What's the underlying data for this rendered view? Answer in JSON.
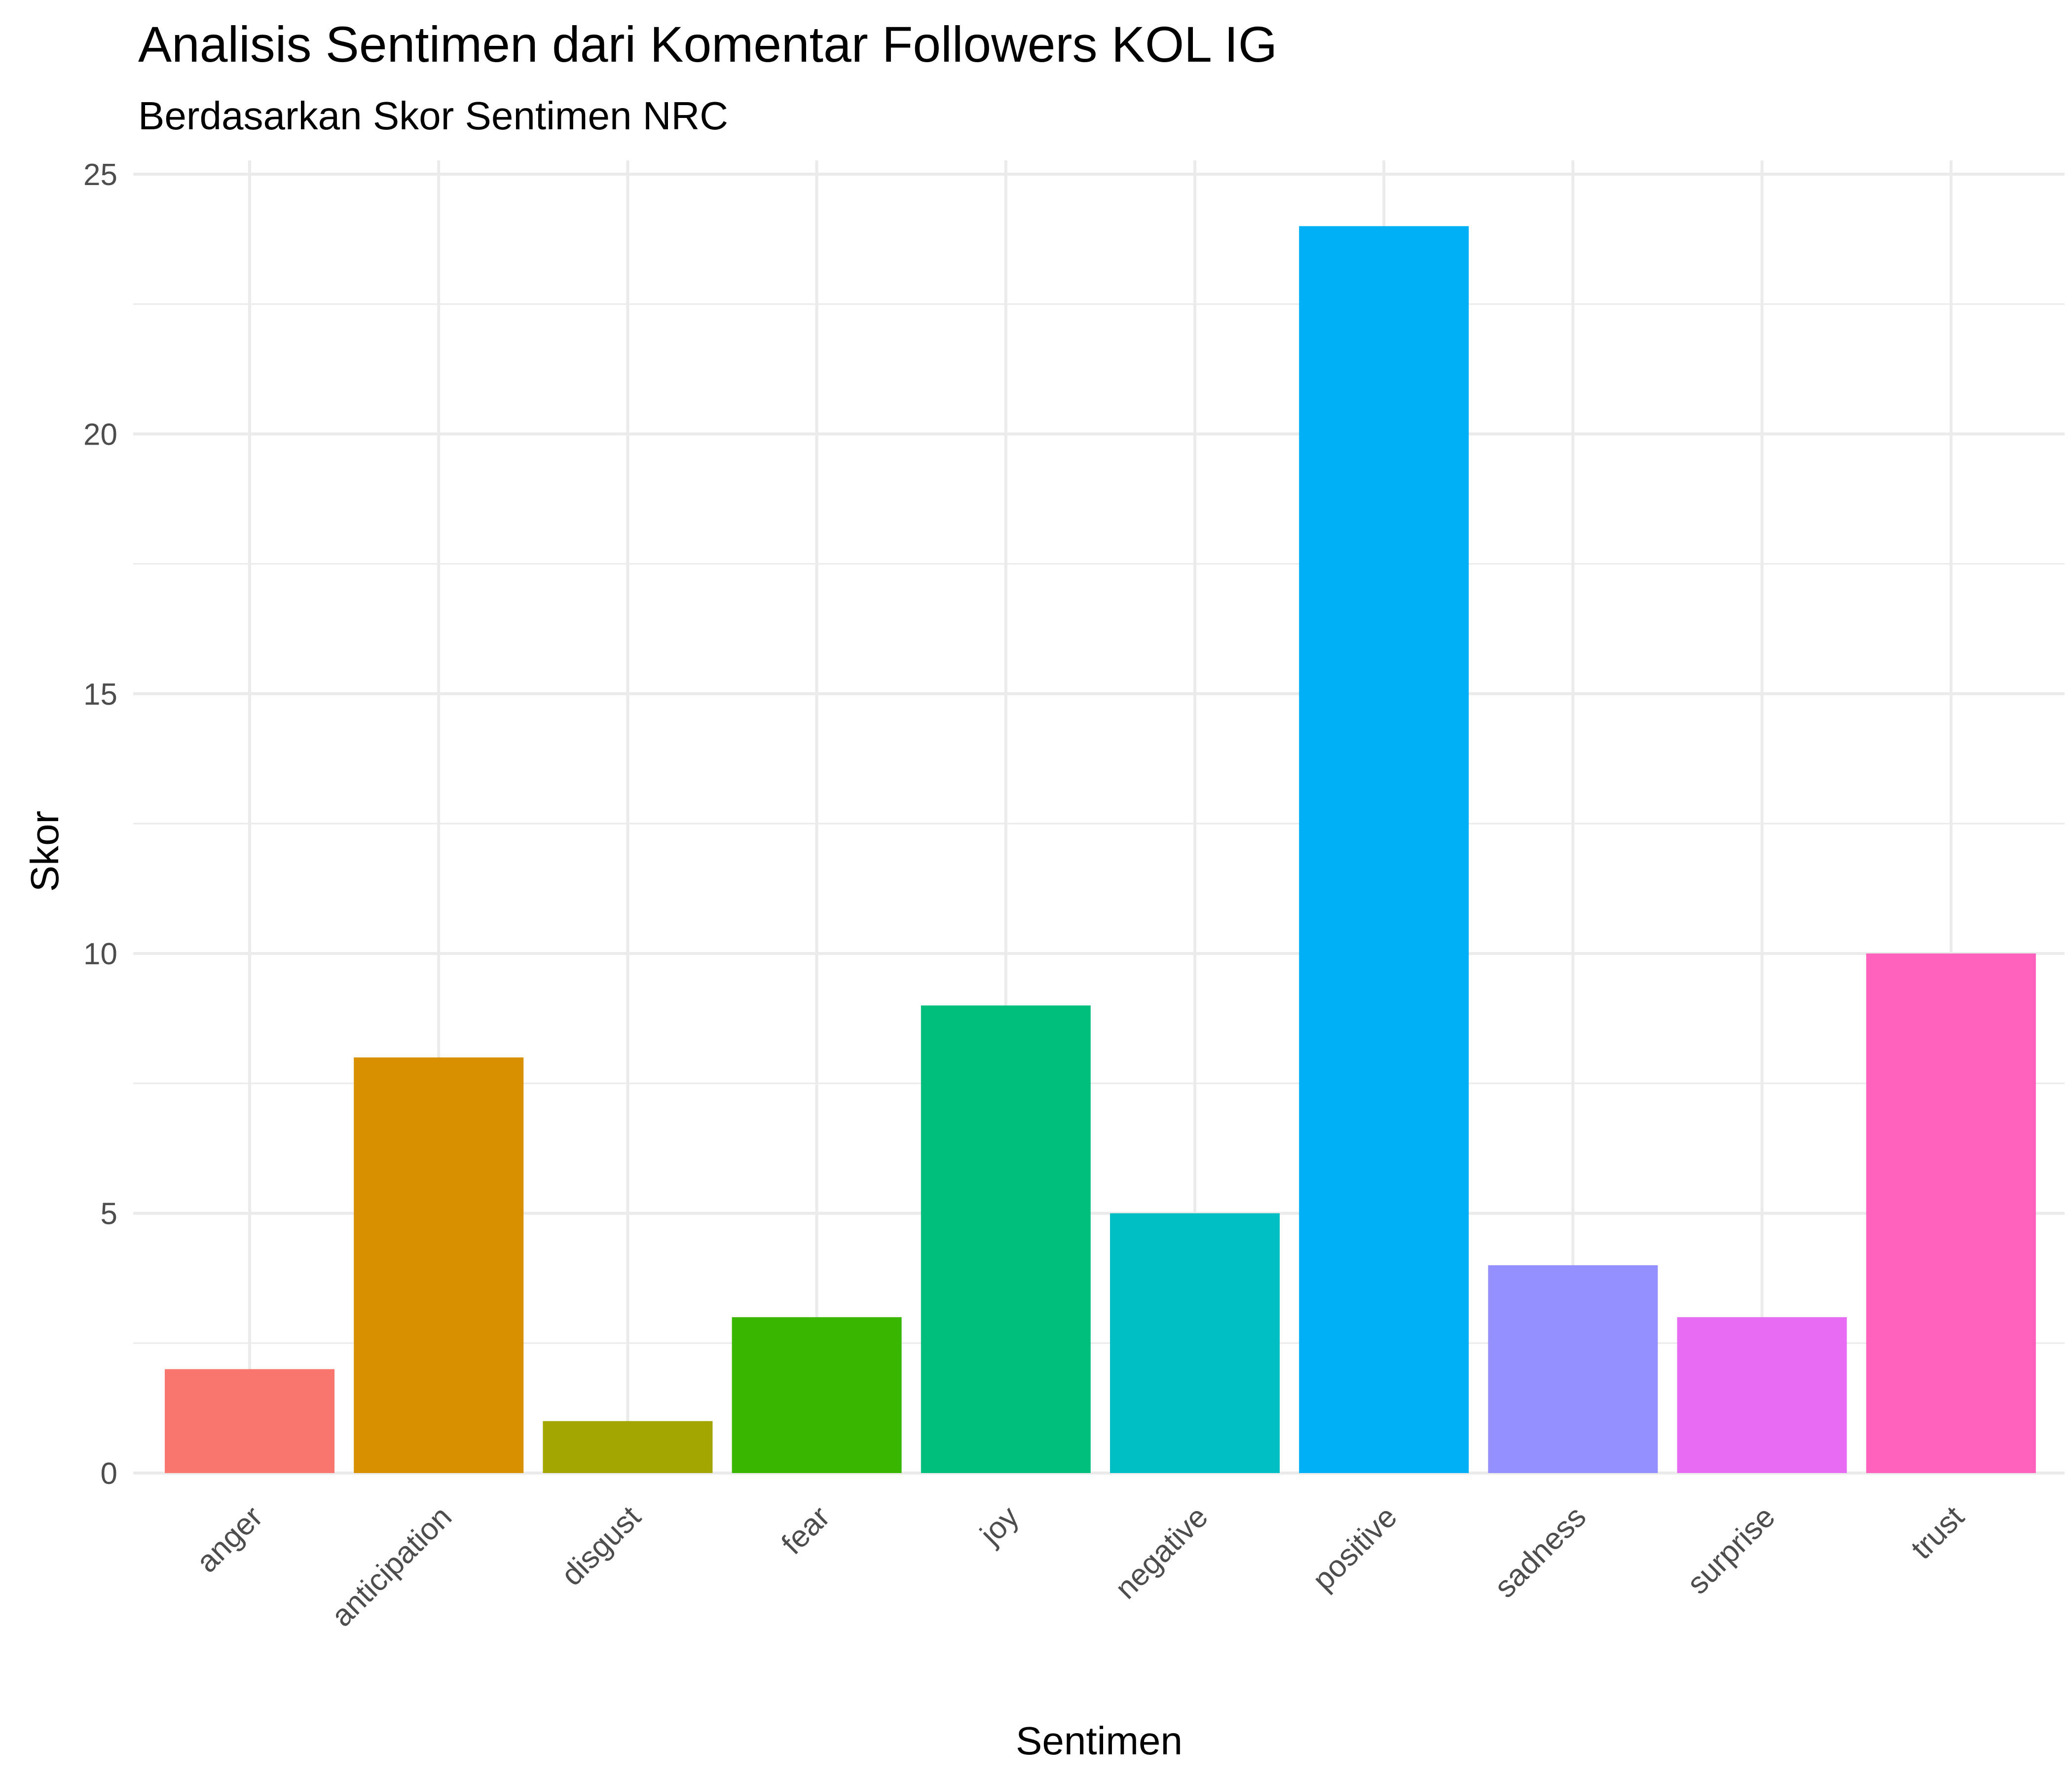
{
  "chart_data": {
    "type": "bar",
    "title": "Analisis Sentimen dari Komentar Followers KOL IG",
    "subtitle": "Berdasarkan Skor Sentimen NRC",
    "xlabel": "Sentimen",
    "ylabel": "Skor",
    "categories": [
      "anger",
      "anticipation",
      "disgust",
      "fear",
      "joy",
      "negative",
      "positive",
      "sadness",
      "surprise",
      "trust"
    ],
    "values": [
      2,
      8,
      1,
      3,
      9,
      5,
      24,
      4,
      3,
      10
    ],
    "colors": [
      "#F8766D",
      "#D89000",
      "#A3A500",
      "#39B600",
      "#00BF7D",
      "#00BFC4",
      "#00B0F6",
      "#9590FF",
      "#E76BF3",
      "#FF62BC"
    ],
    "ylim": [
      0,
      25
    ],
    "yticks": [
      0,
      5,
      10,
      15,
      20,
      25
    ],
    "grid": true,
    "legend": "none"
  }
}
